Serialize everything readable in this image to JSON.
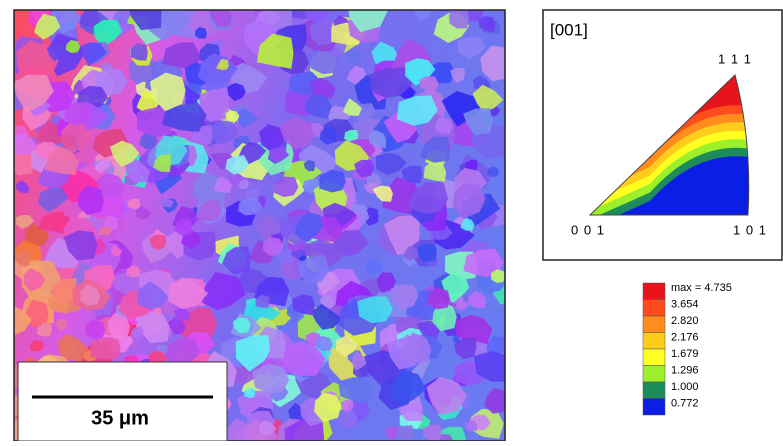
{
  "scale_bar": {
    "label": "35 μm"
  },
  "pole_figure": {
    "direction": "[001]",
    "corners": {
      "top": "1 1 1",
      "left": "0 0 1",
      "right": "1 0 1"
    }
  },
  "legend": {
    "levels": [
      {
        "label": "max = 4.735",
        "color": "#e8141c"
      },
      {
        "label": "3.654",
        "color": "#ff4c1c"
      },
      {
        "label": "2.820",
        "color": "#ff8c1c"
      },
      {
        "label": "2.176",
        "color": "#ffcc1c"
      },
      {
        "label": "1.679",
        "color": "#ffff22"
      },
      {
        "label": "1.296",
        "color": "#9cf02a"
      },
      {
        "label": "1.000",
        "color": "#1e8c5a"
      },
      {
        "label": "0.772",
        "color": "#0a1ee6"
      }
    ]
  }
}
